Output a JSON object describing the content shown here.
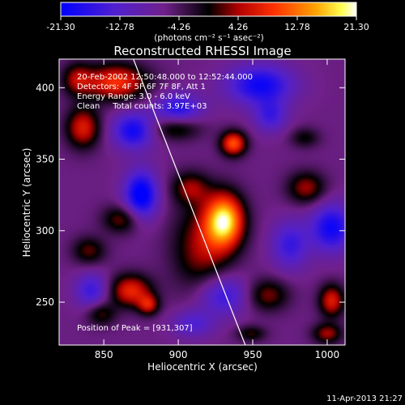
{
  "chart_data": {
    "type": "heatmap",
    "title": "Reconstructed RHESSI Image",
    "xlabel": "Heliocentric X (arcsec)",
    "ylabel": "Heliocentric Y (arcsec)",
    "xlim": [
      820,
      1012
    ],
    "ylim": [
      220,
      420
    ],
    "x_ticks": [
      "850",
      "900",
      "950",
      "1000"
    ],
    "y_ticks": [
      "250",
      "300",
      "350",
      "400"
    ],
    "x_tick_values": [
      850,
      900,
      950,
      1000
    ],
    "y_tick_values": [
      250,
      300,
      350,
      400
    ],
    "colorbar": {
      "ticks": [
        "-21.30",
        "-12.78",
        "-4.26",
        "4.26",
        "12.78",
        "21.30"
      ],
      "unit_label": "(photons cm⁻² s⁻¹ asec⁻²)",
      "range": [
        -21.3,
        21.3
      ]
    },
    "annotations": [
      "20-Feb-2002 12:50:48.000 to 12:52:44.000",
      "Detectors: 4F 5F 6F 7F 8F, Att 1",
      "Energy Range: 3.0 - 6.0 keV",
      "Clean     Total counts: 3.97E+03"
    ],
    "peak_label": "Position of Peak = [931,307]",
    "peak": {
      "x": 931,
      "y": 307,
      "value": 21.3
    },
    "limb_line": [
      [
        868,
        425
      ],
      [
        945,
        220
      ]
    ],
    "blobs": [
      {
        "x": 931,
        "y": 307,
        "sx": 9,
        "sy": 13,
        "amp": 24
      },
      {
        "x": 916,
        "y": 288,
        "sx": 14,
        "sy": 22,
        "amp": 10
      },
      {
        "x": 908,
        "y": 330,
        "sx": 9,
        "sy": 8,
        "amp": 9
      },
      {
        "x": 858,
        "y": 404,
        "sx": 15,
        "sy": 9,
        "amp": 15
      },
      {
        "x": 836,
        "y": 372,
        "sx": 8,
        "sy": 10,
        "amp": 13
      },
      {
        "x": 832,
        "y": 406,
        "sx": 7,
        "sy": 8,
        "amp": 9
      },
      {
        "x": 937,
        "y": 361,
        "sx": 6,
        "sy": 6,
        "amp": 17
      },
      {
        "x": 898,
        "y": 372,
        "sx": 12,
        "sy": 6,
        "amp": 9
      },
      {
        "x": 862,
        "y": 308,
        "sx": 9,
        "sy": 7,
        "amp": 9
      },
      {
        "x": 840,
        "y": 286,
        "sx": 8,
        "sy": 7,
        "amp": 8
      },
      {
        "x": 868,
        "y": 258,
        "sx": 10,
        "sy": 8,
        "amp": 14
      },
      {
        "x": 880,
        "y": 248,
        "sx": 5,
        "sy": 5,
        "amp": 11
      },
      {
        "x": 848,
        "y": 242,
        "sx": 7,
        "sy": 6,
        "amp": 8
      },
      {
        "x": 986,
        "y": 330,
        "sx": 9,
        "sy": 8,
        "amp": 10
      },
      {
        "x": 960,
        "y": 255,
        "sx": 10,
        "sy": 8,
        "amp": 9
      },
      {
        "x": 1003,
        "y": 251,
        "sx": 6,
        "sy": 8,
        "amp": 13
      },
      {
        "x": 1000,
        "y": 228,
        "sx": 7,
        "sy": 5,
        "amp": 10
      },
      {
        "x": 949,
        "y": 228,
        "sx": 7,
        "sy": 4,
        "amp": 7
      },
      {
        "x": 985,
        "y": 365,
        "sx": 7,
        "sy": 5,
        "amp": 6
      },
      {
        "x": 875,
        "y": 325,
        "sx": 8,
        "sy": 12,
        "amp": -17
      },
      {
        "x": 870,
        "y": 370,
        "sx": 10,
        "sy": 9,
        "amp": -14
      },
      {
        "x": 900,
        "y": 385,
        "sx": 11,
        "sy": 8,
        "amp": -12
      },
      {
        "x": 955,
        "y": 402,
        "sx": 16,
        "sy": 10,
        "amp": -14
      },
      {
        "x": 1003,
        "y": 302,
        "sx": 10,
        "sy": 12,
        "amp": -14
      },
      {
        "x": 930,
        "y": 255,
        "sx": 12,
        "sy": 10,
        "amp": -11
      },
      {
        "x": 842,
        "y": 258,
        "sx": 8,
        "sy": 9,
        "amp": -10
      },
      {
        "x": 975,
        "y": 290,
        "sx": 9,
        "sy": 12,
        "amp": -10
      },
      {
        "x": 962,
        "y": 380,
        "sx": 8,
        "sy": 8,
        "amp": -9
      },
      {
        "x": 910,
        "y": 235,
        "sx": 10,
        "sy": 7,
        "amp": -8
      }
    ]
  },
  "footer": {
    "timestamp": "11-Apr-2013 21:27"
  }
}
